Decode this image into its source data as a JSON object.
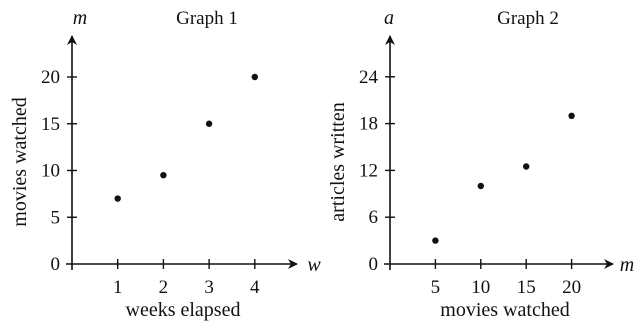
{
  "chart_data": [
    {
      "type": "scatter",
      "title": "Graph 1",
      "xvar": "w",
      "yvar": "m",
      "xlabel": "weeks elapsed",
      "ylabel": "movies watched",
      "xlim": [
        0,
        4.6
      ],
      "ylim": [
        0,
        24
      ],
      "xticks": [
        1,
        2,
        3,
        4
      ],
      "yticks": [
        0,
        5,
        10,
        15,
        20
      ],
      "x": [
        1,
        2,
        3,
        4
      ],
      "y": [
        7,
        9.5,
        15,
        20
      ],
      "grid": false
    },
    {
      "type": "scatter",
      "title": "Graph 2",
      "xvar": "m",
      "yvar": "a",
      "xlabel": "movies watched",
      "ylabel": "articles written",
      "xlim": [
        0,
        23
      ],
      "ylim": [
        0,
        28.5
      ],
      "xticks": [
        5,
        10,
        15,
        20
      ],
      "yticks": [
        0,
        6,
        12,
        18,
        24
      ],
      "x": [
        5,
        10,
        15,
        20
      ],
      "y": [
        3,
        10,
        12.5,
        19
      ],
      "grid": false
    }
  ]
}
